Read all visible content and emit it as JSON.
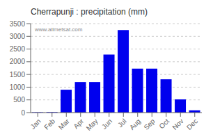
{
  "chart_data": {
    "type": "bar",
    "title": "Cherrapunji : precipitation (mm)",
    "categories": [
      "Jan",
      "Feb",
      "Mar",
      "Apr",
      "May",
      "Jun",
      "Jul",
      "Aug",
      "Sep",
      "Oct",
      "Nov",
      "Dec"
    ],
    "values": [
      15,
      20,
      900,
      1200,
      1200,
      2280,
      3250,
      1730,
      1730,
      1310,
      520,
      90
    ],
    "color": "#0000ee",
    "ylim": [
      0,
      3500
    ],
    "yticks": [
      0,
      500,
      1000,
      1500,
      2000,
      2500,
      3000,
      3500
    ],
    "grid": true,
    "annotations": [
      "www.allmetsat.com"
    ]
  }
}
